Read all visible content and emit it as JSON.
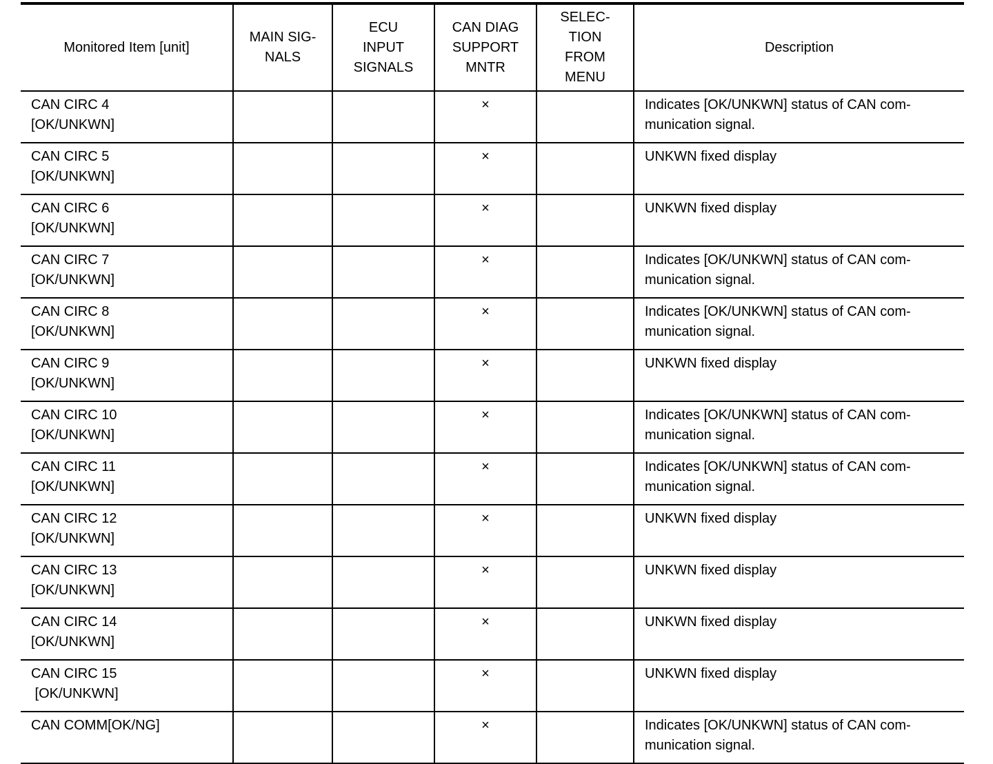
{
  "headers": [
    "Monitored Item [unit]",
    "MAIN SIG-\nNALS",
    "ECU\nINPUT\nSIGNALS",
    "CAN DIAG\nSUPPORT\nMNTR",
    "SELEC-\nTION\nFROM\nMENU",
    "Description"
  ],
  "mark_symbol": "×",
  "rows": [
    {
      "item": "CAN CIRC 4\n[OK/UNKWN]",
      "main": "",
      "ecu": "",
      "can_diag": "×",
      "selection": "",
      "description": "Indicates [OK/UNKWN] status of CAN com-\nmunication signal."
    },
    {
      "item": "CAN CIRC 5\n[OK/UNKWN]",
      "main": "",
      "ecu": "",
      "can_diag": "×",
      "selection": "",
      "description": "UNKWN fixed display"
    },
    {
      "item": "CAN CIRC 6\n[OK/UNKWN]",
      "main": "",
      "ecu": "",
      "can_diag": "×",
      "selection": "",
      "description": "UNKWN fixed display"
    },
    {
      "item": "CAN CIRC 7\n[OK/UNKWN]",
      "main": "",
      "ecu": "",
      "can_diag": "×",
      "selection": "",
      "description": "Indicates [OK/UNKWN] status of CAN com-\nmunication signal."
    },
    {
      "item": "CAN CIRC 8\n[OK/UNKWN]",
      "main": "",
      "ecu": "",
      "can_diag": "×",
      "selection": "",
      "description": "Indicates [OK/UNKWN] status of CAN com-\nmunication signal."
    },
    {
      "item": "CAN CIRC 9\n[OK/UNKWN]",
      "main": "",
      "ecu": "",
      "can_diag": "×",
      "selection": "",
      "description": "UNKWN fixed display"
    },
    {
      "item": "CAN CIRC 10\n[OK/UNKWN]",
      "main": "",
      "ecu": "",
      "can_diag": "×",
      "selection": "",
      "description": "Indicates [OK/UNKWN] status of CAN com-\nmunication signal."
    },
    {
      "item": "CAN CIRC 11\n[OK/UNKWN]",
      "main": "",
      "ecu": "",
      "can_diag": "×",
      "selection": "",
      "description": "Indicates [OK/UNKWN] status of CAN com-\nmunication signal."
    },
    {
      "item": "CAN CIRC 12\n[OK/UNKWN]",
      "main": "",
      "ecu": "",
      "can_diag": "×",
      "selection": "",
      "description": "UNKWN fixed display"
    },
    {
      "item": "CAN CIRC 13\n[OK/UNKWN]",
      "main": "",
      "ecu": "",
      "can_diag": "×",
      "selection": "",
      "description": "UNKWN fixed display"
    },
    {
      "item": "CAN CIRC 14\n[OK/UNKWN]",
      "main": "",
      "ecu": "",
      "can_diag": "×",
      "selection": "",
      "description": "UNKWN fixed display"
    },
    {
      "item": "CAN CIRC 15\n [OK/UNKWN]",
      "main": "",
      "ecu": "",
      "can_diag": "×",
      "selection": "",
      "description": "UNKWN fixed display"
    },
    {
      "item": "CAN COMM[OK/NG]",
      "main": "",
      "ecu": "",
      "can_diag": "×",
      "selection": "",
      "description": "Indicates [OK/UNKWN] status of CAN com-\nmunication signal."
    }
  ]
}
